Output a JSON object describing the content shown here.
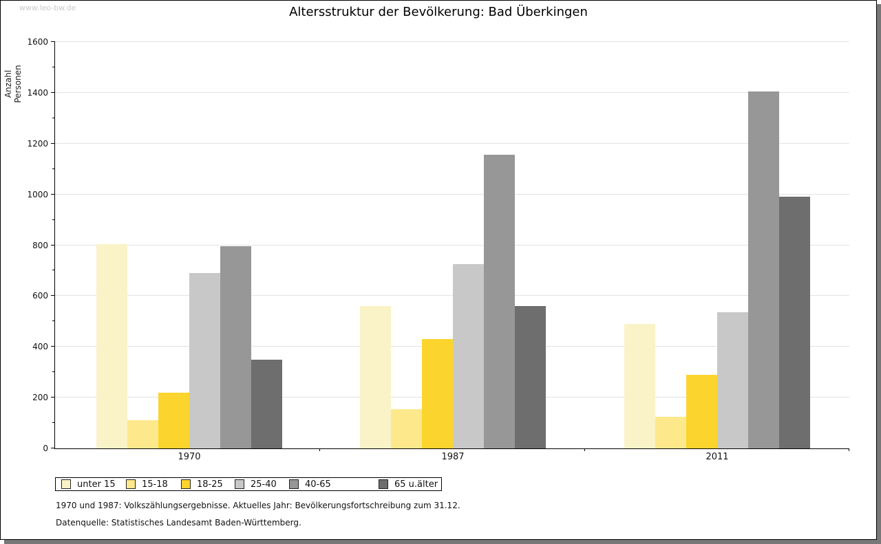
{
  "window": {
    "watermark": "www.leo-bw.de"
  },
  "chart_data": {
    "type": "bar",
    "title": "Altersstruktur der Bevölkerung: Bad Überkingen",
    "xlabel": "",
    "ylabel": "Anzahl Personen",
    "categories": [
      "1970",
      "1987",
      "2011"
    ],
    "series": [
      {
        "name": "unter 15",
        "color": "#faf3c8",
        "values": [
          805,
          560,
          490
        ]
      },
      {
        "name": "15-18",
        "color": "#fde98c",
        "values": [
          110,
          155,
          125
        ]
      },
      {
        "name": "18-25",
        "color": "#fcd42e",
        "values": [
          220,
          430,
          290
        ]
      },
      {
        "name": "25-40",
        "color": "#c8c8c8",
        "values": [
          690,
          725,
          535
        ]
      },
      {
        "name": "40-65",
        "color": "#979797",
        "values": [
          795,
          1155,
          1405
        ]
      },
      {
        "name": "65 u.älter",
        "color": "#6e6e6e",
        "values": [
          350,
          560,
          990
        ]
      }
    ],
    "ylim": [
      0,
      1600
    ],
    "yticks": [
      0,
      200,
      400,
      600,
      800,
      1000,
      1200,
      1400,
      1600
    ],
    "ytick_minor_step": 100,
    "grid": "horizontal-major",
    "legend_position": "bottom-left"
  },
  "footnotes": [
    "1970 und 1987: Volkszählungsergebnisse. Aktuelles Jahr: Bevölkerungsfortschreibung zum 31.12.",
    "Datenquelle: Statistisches Landesamt Baden-Württemberg."
  ]
}
